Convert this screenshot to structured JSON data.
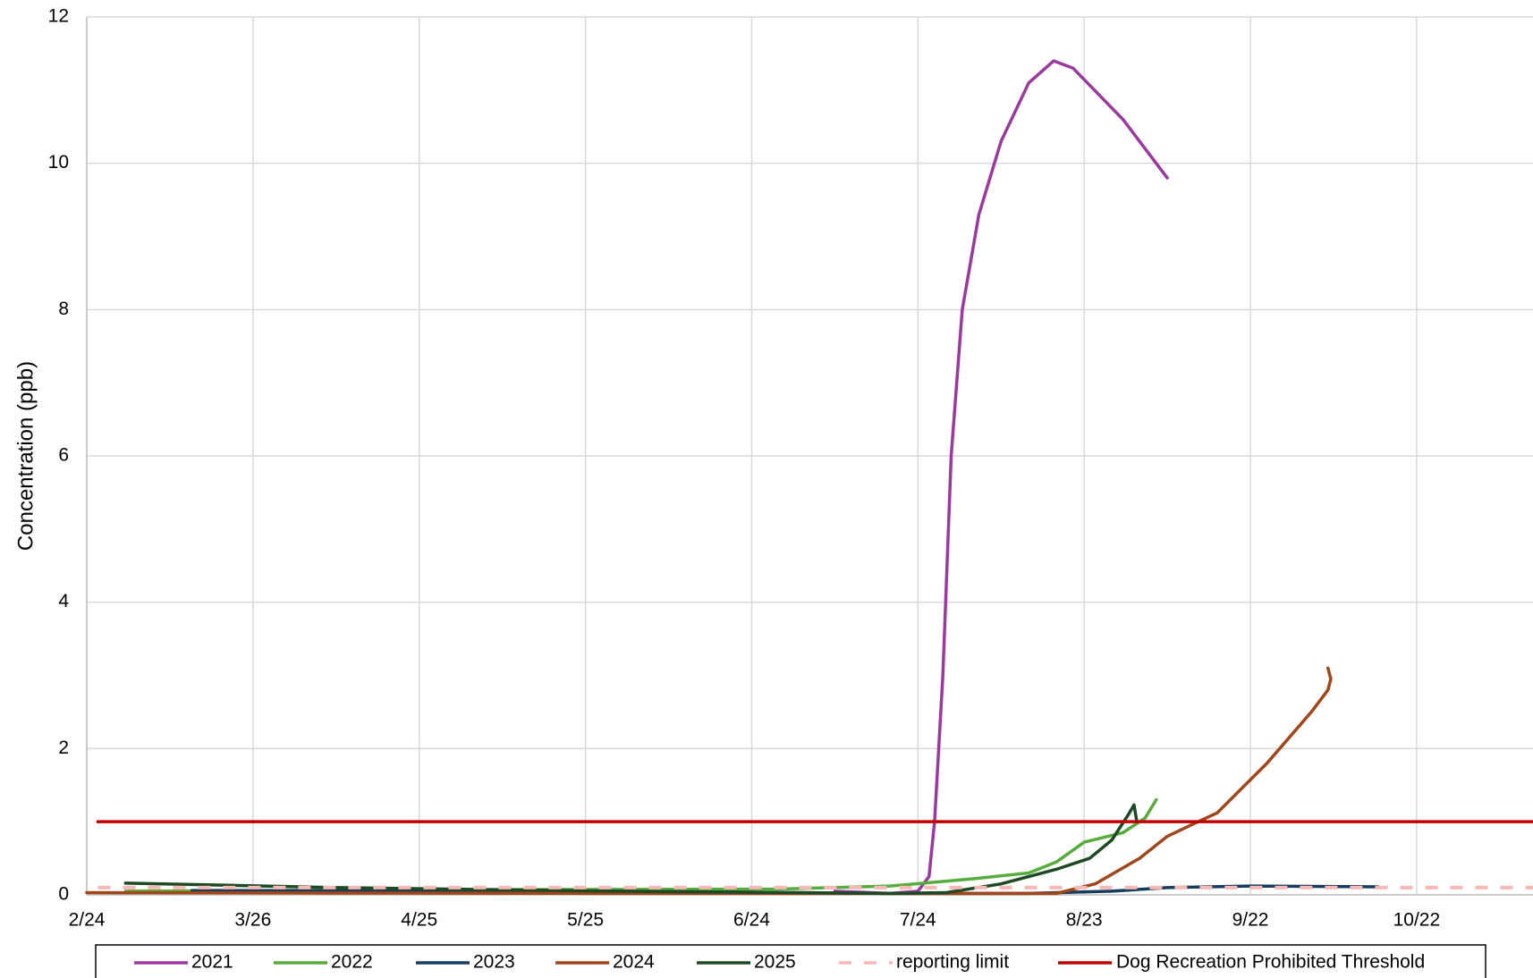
{
  "chart_data": {
    "type": "line",
    "y_label": "Concentration (ppb)",
    "xlim": [
      55,
      316
    ],
    "ylim": [
      0,
      12
    ],
    "xticks": [
      {
        "value": 55,
        "label": "2/24"
      },
      {
        "value": 85,
        "label": "3/26"
      },
      {
        "value": 115,
        "label": "4/25"
      },
      {
        "value": 145,
        "label": "5/25"
      },
      {
        "value": 175,
        "label": "6/24"
      },
      {
        "value": 205,
        "label": "7/24"
      },
      {
        "value": 235,
        "label": "8/23"
      },
      {
        "value": 265,
        "label": "9/22"
      },
      {
        "value": 295,
        "label": "10/22"
      }
    ],
    "yticks": [
      0,
      2,
      4,
      6,
      8,
      10,
      12
    ],
    "grid": true,
    "legend": "bottom",
    "series": [
      {
        "name": "2021",
        "color": "#9b399e",
        "dash": false,
        "x": [
          190,
          200,
          205,
          207,
          208,
          209.5,
          211,
          213,
          216,
          220,
          225,
          229.5,
          233,
          242,
          250
        ],
        "values": [
          0.05,
          0.02,
          0.05,
          0.25,
          1.0,
          3,
          6,
          8,
          9.3,
          10.3,
          11.1,
          11.4,
          11.3,
          10.6,
          9.8
        ]
      },
      {
        "name": "2022",
        "color": "#56ad3c",
        "dash": false,
        "x": [
          62,
          120,
          180,
          200,
          215,
          225,
          230,
          235,
          242,
          246,
          248
        ],
        "values": [
          0.05,
          0.07,
          0.08,
          0.12,
          0.22,
          0.3,
          0.45,
          0.72,
          0.85,
          1.05,
          1.3
        ]
      },
      {
        "name": "2023",
        "color": "#173d5c",
        "dash": false,
        "x": [
          74,
          150,
          200,
          225,
          240,
          250,
          265,
          288
        ],
        "values": [
          0.06,
          0.05,
          0.02,
          0.02,
          0.05,
          0.1,
          0.12,
          0.11
        ]
      },
      {
        "name": "2024",
        "color": "#a0461a",
        "dash": false,
        "x": [
          55,
          150,
          200,
          230,
          237,
          245,
          250,
          255,
          259,
          268,
          276,
          279,
          279.5,
          279
        ],
        "values": [
          0.03,
          0.02,
          0.02,
          0.02,
          0.15,
          0.5,
          0.8,
          0.98,
          1.12,
          1.8,
          2.5,
          2.8,
          2.95,
          3.1
        ]
      },
      {
        "name": "2025",
        "color": "#1d4a23",
        "dash": false,
        "x": [
          62,
          100,
          150,
          200,
          210,
          220,
          230,
          236,
          240,
          243,
          244,
          244.5
        ],
        "values": [
          0.16,
          0.1,
          0.05,
          0.02,
          0.03,
          0.15,
          0.35,
          0.5,
          0.75,
          1.1,
          1.23,
          1.0
        ]
      },
      {
        "name": "reporting limit",
        "color": "#f7b8b6",
        "dash": true,
        "x": [
          57,
          316
        ],
        "values": [
          0.1,
          0.1
        ]
      },
      {
        "name": "Dog Recreation Prohibited Threshold",
        "color": "#c00000",
        "dash": false,
        "x": [
          57,
          316
        ],
        "values": [
          1,
          1
        ]
      }
    ]
  }
}
